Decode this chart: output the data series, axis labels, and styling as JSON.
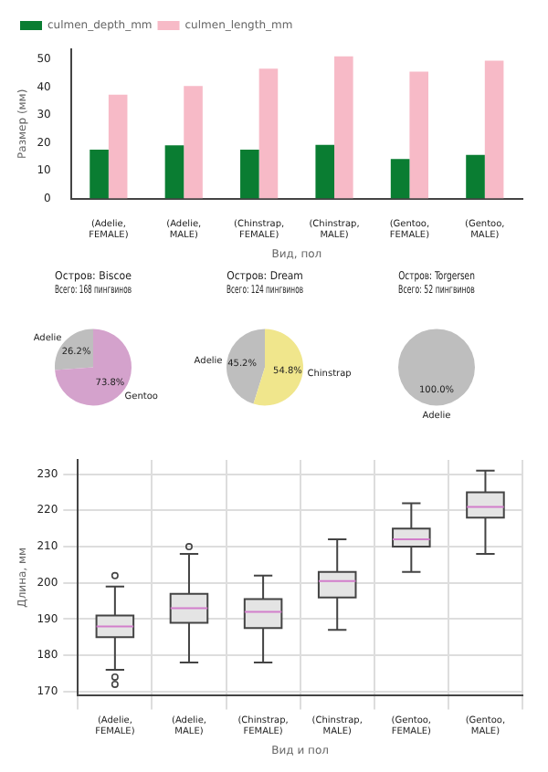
{
  "chart_data": [
    {
      "type": "bar",
      "xlabel": "Вид, пол",
      "ylabel": "Размер (мм)",
      "categories": [
        "(Adelie, FEMALE)",
        "(Adelie, MALE)",
        "(Chinstrap, FEMALE)",
        "(Chinstrap, MALE)",
        "(Gentoo, FEMALE)",
        "(Gentoo, MALE)"
      ],
      "series": [
        {
          "name": "culmen_depth_mm",
          "color": "#0a7d32",
          "values": [
            17.6,
            19.1,
            17.6,
            19.3,
            14.2,
            15.7
          ]
        },
        {
          "name": "culmen_length_mm",
          "color": "#f7bac7",
          "values": [
            37.3,
            40.4,
            46.6,
            51.1,
            45.6,
            49.5
          ]
        }
      ],
      "ylim": [
        0,
        53.6
      ],
      "yticks": [
        0,
        10,
        20,
        30,
        40,
        50
      ],
      "legend": "top left",
      "grid": false
    },
    {
      "type": "pie",
      "title": "Остров: Biscoe\nВсего: 168 пингвинов",
      "categories": [
        "Adelie",
        "Gentoo"
      ],
      "values": [
        26.2,
        73.8
      ],
      "colors": [
        "#bebebe",
        "#d4a2cc"
      ],
      "value_labels": [
        "26.2%",
        "73.8%"
      ]
    },
    {
      "type": "pie",
      "title": "Остров: Dream\nВсего: 124 пингвинов",
      "categories": [
        "Adelie",
        "Chinstrap"
      ],
      "values": [
        45.2,
        54.8
      ],
      "colors": [
        "#bebebe",
        "#f0e68c"
      ],
      "value_labels": [
        "45.2%",
        "54.8%"
      ]
    },
    {
      "type": "pie",
      "title": "Остров: Torgersen\nВсего: 52 пингвинов",
      "categories": [
        "Adelie"
      ],
      "values": [
        100
      ],
      "colors": [
        "#bebebe"
      ],
      "value_labels": [
        "100.0%"
      ]
    },
    {
      "type": "box",
      "xlabel": "Вид и пол",
      "ylabel": "Длина, мм",
      "categories": [
        "(Adelie, FEMALE)",
        "(Adelie, MALE)",
        "(Chinstrap, FEMALE)",
        "(Chinstrap, MALE)",
        "(Gentoo, FEMALE)",
        "(Gentoo, MALE)"
      ],
      "boxes": [
        {
          "low": 176,
          "q1": 185,
          "median": 188,
          "q3": 191,
          "high": 199,
          "outliers": [
            202,
            174,
            172
          ]
        },
        {
          "low": 178,
          "q1": 189,
          "median": 193,
          "q3": 197,
          "high": 208,
          "outliers": [
            210
          ]
        },
        {
          "low": 178,
          "q1": 187.5,
          "median": 192,
          "q3": 195.5,
          "high": 202
        },
        {
          "low": 187,
          "q1": 196,
          "median": 200.5,
          "q3": 203,
          "high": 212
        },
        {
          "low": 203,
          "q1": 210,
          "median": 212,
          "q3": 215,
          "high": 222
        },
        {
          "low": 208,
          "q1": 218,
          "median": 221,
          "q3": 225,
          "high": 231
        }
      ],
      "color": "#e4e4e4",
      "ylim": [
        169.05,
        233.95
      ],
      "yticks": [
        170,
        180,
        190,
        200,
        210,
        220,
        230
      ],
      "grid": true
    }
  ]
}
